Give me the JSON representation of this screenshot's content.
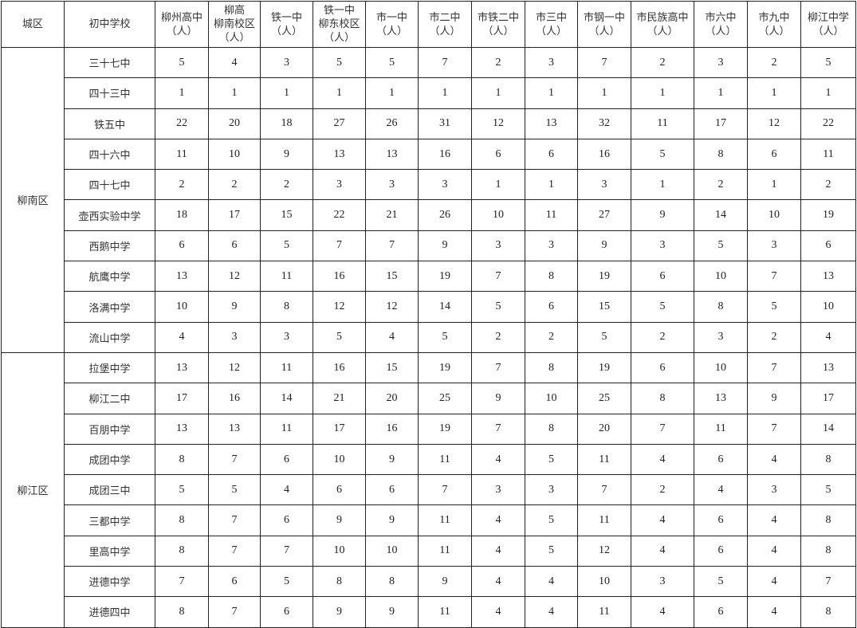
{
  "header": {
    "district": "城区",
    "school": "初中学校",
    "columns": [
      [
        "柳州高中",
        "（人）"
      ],
      [
        "柳高",
        "柳南校区",
        "（人）"
      ],
      [
        "铁一中",
        "（人）"
      ],
      [
        "铁一中",
        "柳东校区",
        "（人）"
      ],
      [
        "市一中",
        "（人）"
      ],
      [
        "市二中",
        "（人）"
      ],
      [
        "市铁二中",
        "（人）"
      ],
      [
        "市三中",
        "（人）"
      ],
      [
        "市钢一中",
        "（人）"
      ],
      [
        "市民族高中",
        "（人）"
      ],
      [
        "市六中",
        "（人）"
      ],
      [
        "市九中",
        "（人）"
      ],
      [
        "柳江中学",
        "（人）"
      ]
    ]
  },
  "districts": [
    {
      "name": "柳南区",
      "rows": [
        {
          "school": "三十七中",
          "values": [
            5,
            4,
            3,
            5,
            5,
            7,
            2,
            3,
            7,
            2,
            3,
            2,
            5
          ]
        },
        {
          "school": "四十三中",
          "values": [
            1,
            1,
            1,
            1,
            1,
            1,
            1,
            1,
            1,
            1,
            1,
            1,
            1
          ]
        },
        {
          "school": "铁五中",
          "values": [
            22,
            20,
            18,
            27,
            26,
            31,
            12,
            13,
            32,
            11,
            17,
            12,
            22
          ]
        },
        {
          "school": "四十六中",
          "values": [
            11,
            10,
            9,
            13,
            13,
            16,
            6,
            6,
            16,
            5,
            8,
            6,
            11
          ]
        },
        {
          "school": "四十七中",
          "values": [
            2,
            2,
            2,
            3,
            3,
            3,
            1,
            1,
            3,
            1,
            2,
            1,
            2
          ]
        },
        {
          "school": "壶西实验中学",
          "values": [
            18,
            17,
            15,
            22,
            21,
            26,
            10,
            11,
            27,
            9,
            14,
            10,
            19
          ]
        },
        {
          "school": "西鹅中学",
          "values": [
            6,
            6,
            5,
            7,
            7,
            9,
            3,
            3,
            9,
            3,
            5,
            3,
            6
          ]
        },
        {
          "school": "航鹰中学",
          "values": [
            13,
            12,
            11,
            16,
            15,
            19,
            7,
            8,
            19,
            6,
            10,
            7,
            13
          ]
        },
        {
          "school": "洛满中学",
          "values": [
            10,
            9,
            8,
            12,
            12,
            14,
            5,
            6,
            15,
            5,
            8,
            5,
            10
          ]
        },
        {
          "school": "流山中学",
          "values": [
            4,
            3,
            3,
            5,
            4,
            5,
            2,
            2,
            5,
            2,
            3,
            2,
            4
          ]
        }
      ]
    },
    {
      "name": "柳江区",
      "rows": [
        {
          "school": "拉堡中学",
          "values": [
            13,
            12,
            11,
            16,
            15,
            19,
            7,
            8,
            19,
            6,
            10,
            7,
            13
          ]
        },
        {
          "school": "柳江二中",
          "values": [
            17,
            16,
            14,
            21,
            20,
            25,
            9,
            10,
            25,
            8,
            13,
            9,
            17
          ]
        },
        {
          "school": "百朋中学",
          "values": [
            13,
            13,
            11,
            17,
            16,
            19,
            7,
            8,
            20,
            7,
            11,
            7,
            14
          ]
        },
        {
          "school": "成团中学",
          "values": [
            8,
            7,
            6,
            10,
            9,
            11,
            4,
            5,
            11,
            4,
            6,
            4,
            8
          ]
        },
        {
          "school": "成团三中",
          "values": [
            5,
            5,
            4,
            6,
            6,
            7,
            3,
            3,
            7,
            2,
            4,
            3,
            5
          ]
        },
        {
          "school": "三都中学",
          "values": [
            8,
            7,
            6,
            9,
            9,
            11,
            4,
            5,
            11,
            4,
            6,
            4,
            8
          ]
        },
        {
          "school": "里高中学",
          "values": [
            8,
            7,
            7,
            10,
            10,
            11,
            4,
            5,
            12,
            4,
            6,
            4,
            8
          ]
        },
        {
          "school": "进德中学",
          "values": [
            7,
            6,
            5,
            8,
            8,
            9,
            4,
            4,
            10,
            3,
            5,
            4,
            7
          ]
        },
        {
          "school": "进德四中",
          "values": [
            8,
            7,
            6,
            9,
            9,
            11,
            4,
            4,
            11,
            4,
            6,
            4,
            8
          ]
        }
      ]
    }
  ]
}
